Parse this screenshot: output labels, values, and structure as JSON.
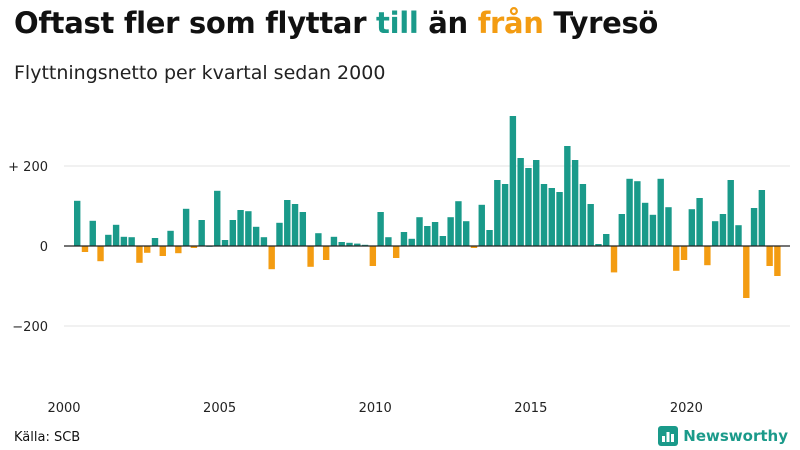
{
  "header": {
    "title_parts": [
      "Oftast fler som flyttar ",
      "till",
      " än ",
      "från",
      " Tyresö"
    ],
    "subtitle": "Flyttningsnetto per kvartal sedan 2000"
  },
  "footer": {
    "source": "Källa: SCB",
    "brand": "Newsworthy",
    "brand_icon": "bar-chart-icon"
  },
  "colors": {
    "positive": "#1a9a8a",
    "negative": "#f39c12",
    "grid": "#e3e3e3",
    "zero_line": "#222222"
  },
  "chart_data": {
    "type": "bar",
    "title": "Oftast fler som flyttar till än från Tyresö",
    "subtitle": "Flyttningsnetto per kvartal sedan 2000",
    "x_start": "2000 Q1",
    "x_ticks": [
      "2000",
      "2005",
      "2010",
      "2015",
      "2020"
    ],
    "y_ticks": [
      200,
      0,
      -200
    ],
    "y_tick_labels": [
      "+ 200",
      "0",
      "−200"
    ],
    "ylim": [
      -320,
      330
    ],
    "grid": true,
    "values": [
      113,
      -15,
      63,
      -38,
      28,
      53,
      23,
      22,
      -42,
      -17,
      20,
      -25,
      38,
      -18,
      93,
      -5,
      65,
      0,
      138,
      15,
      65,
      90,
      87,
      48,
      22,
      -58,
      58,
      115,
      105,
      85,
      -52,
      32,
      -35,
      23,
      10,
      8,
      6,
      3,
      -50,
      85,
      22,
      -30,
      35,
      18,
      72,
      50,
      60,
      25,
      72,
      112,
      62,
      -5,
      103,
      40,
      165,
      155,
      325,
      220,
      195,
      215,
      155,
      145,
      135,
      250,
      215,
      155,
      105,
      5,
      30,
      -66,
      80,
      168,
      162,
      108,
      78,
      168,
      97,
      -62,
      -35,
      92,
      120,
      -48,
      62,
      80,
      165,
      52,
      -130,
      95,
      140,
      -50,
      -75
    ]
  }
}
